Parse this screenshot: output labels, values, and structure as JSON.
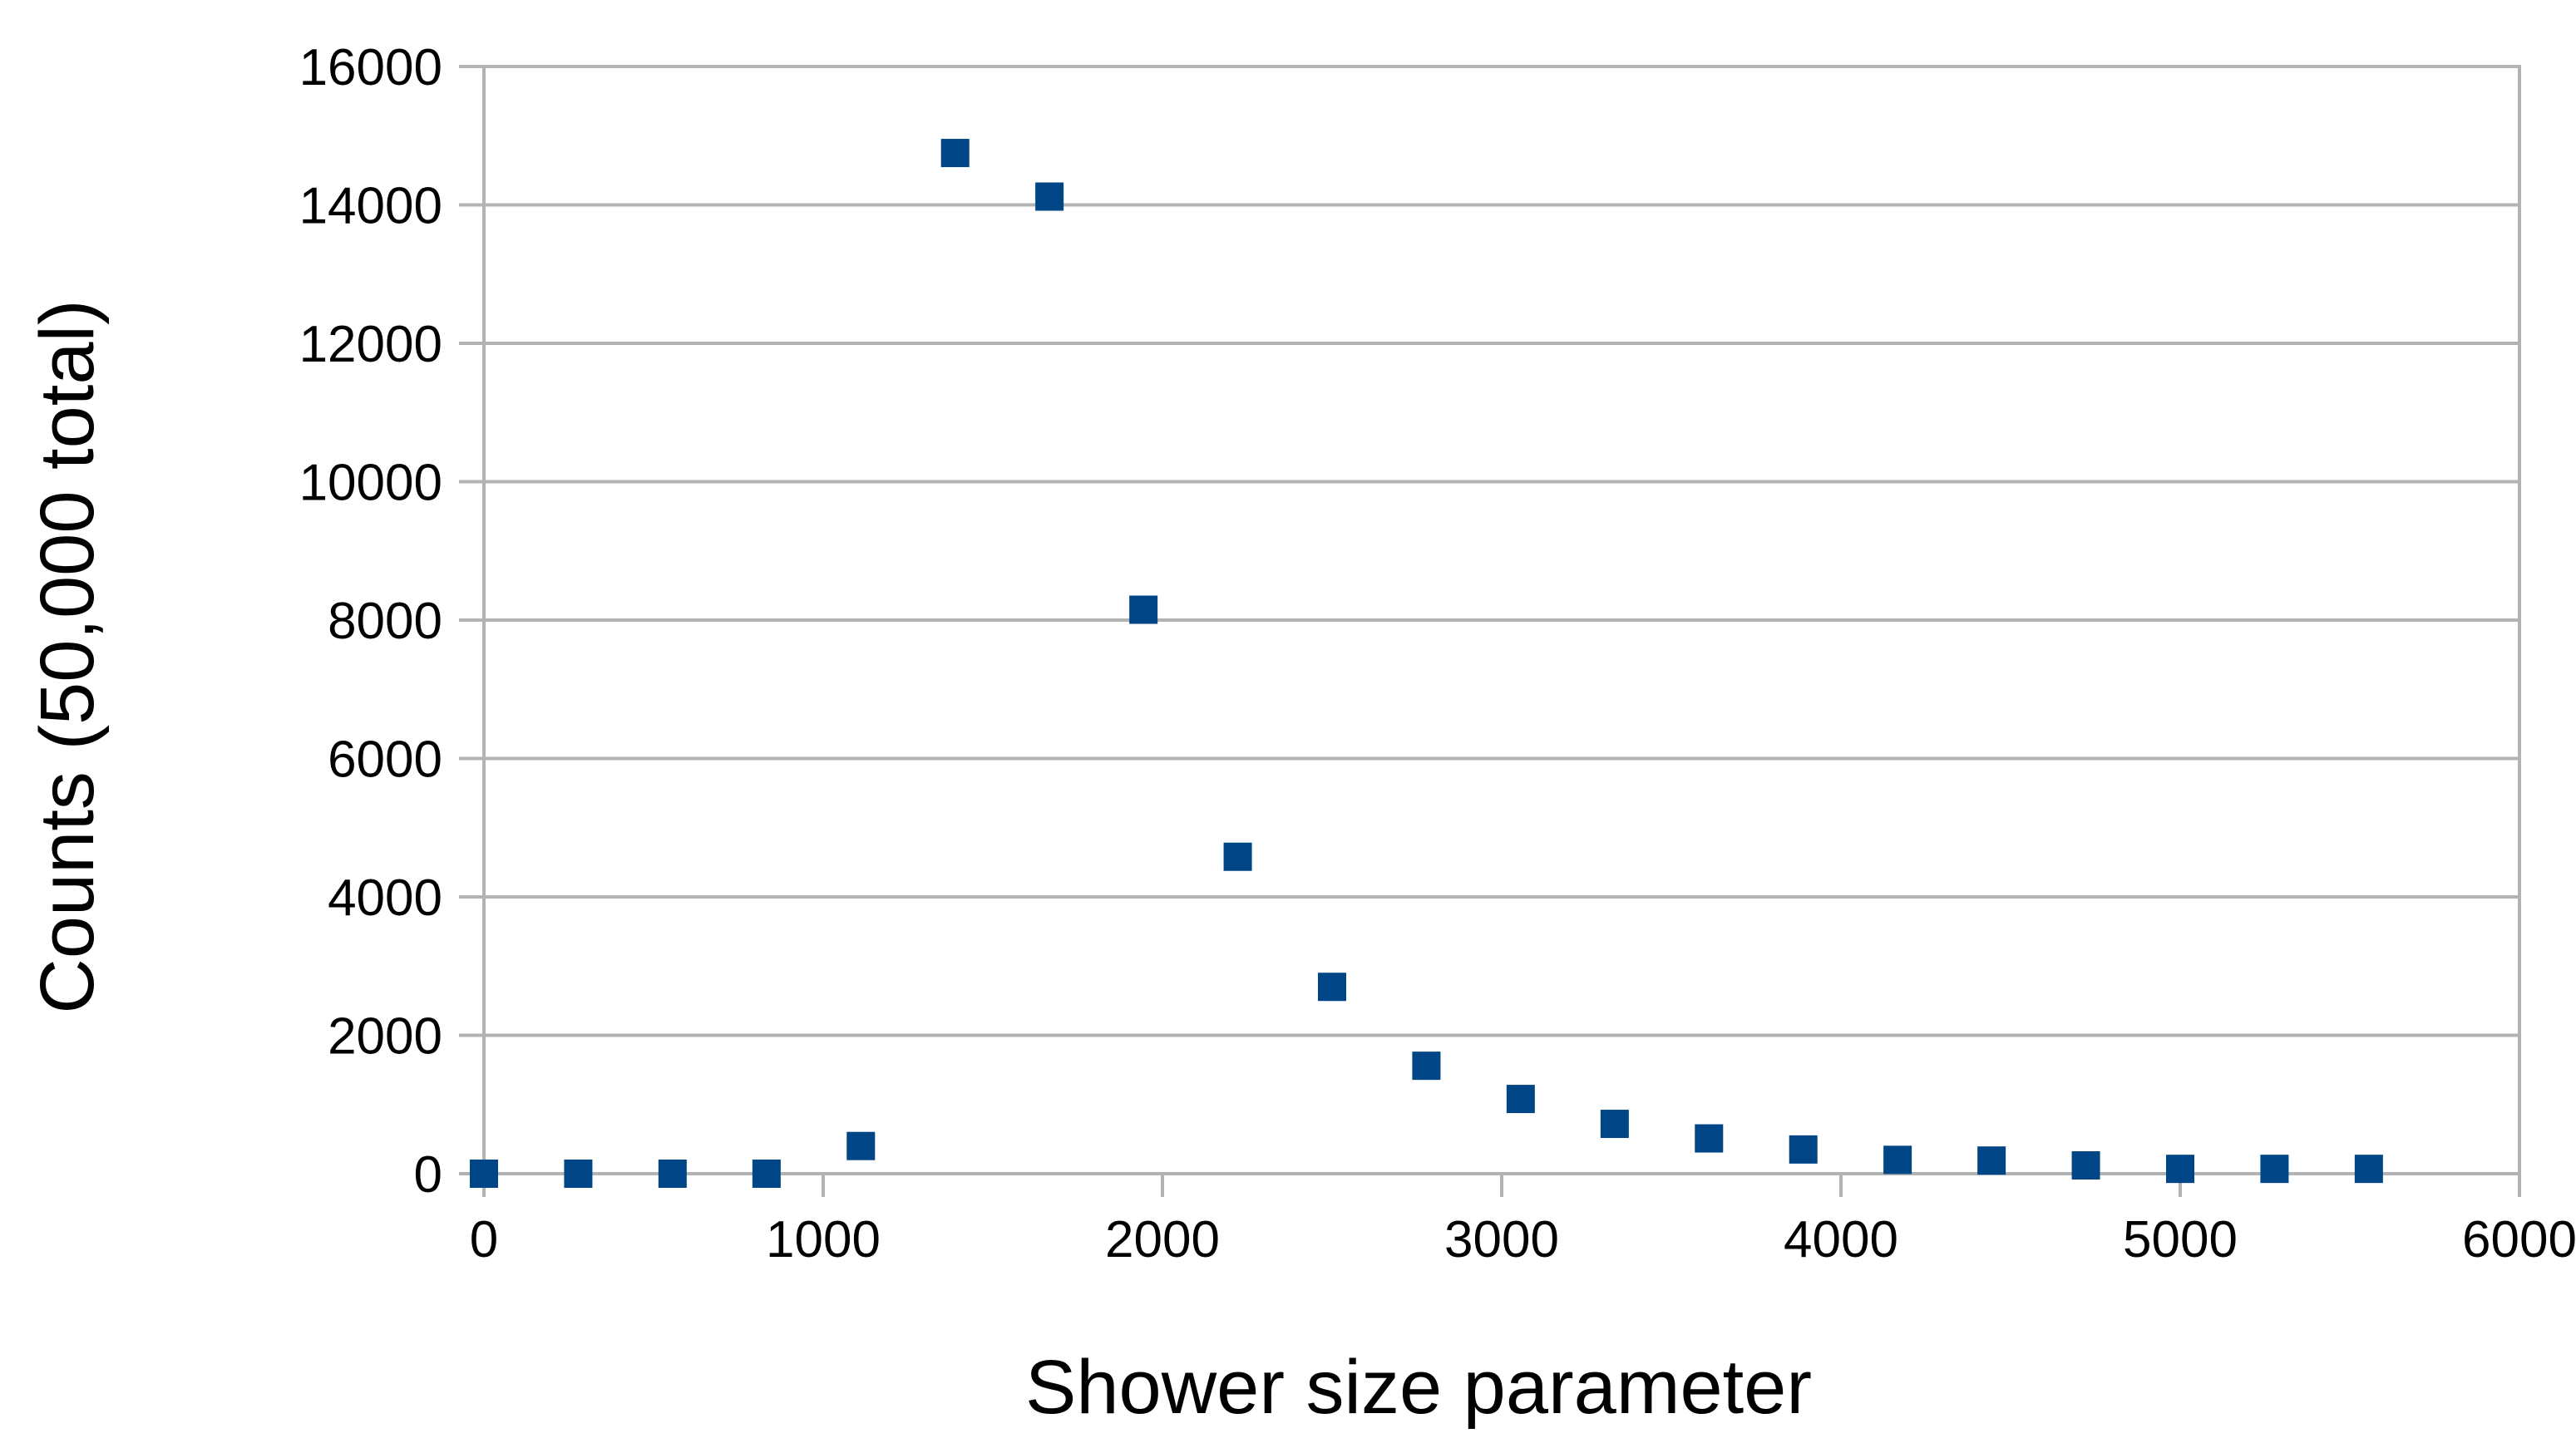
{
  "chart_data": {
    "type": "scatter",
    "title": "",
    "xlabel": "Shower size parameter",
    "ylabel": "Counts (50,000 total)",
    "xlim": [
      0,
      6000
    ],
    "ylim": [
      0,
      16000
    ],
    "x_ticks": [
      "0",
      "1000",
      "2000",
      "3000",
      "4000",
      "5000",
      "6000"
    ],
    "y_ticks": [
      "0",
      "2000",
      "4000",
      "6000",
      "8000",
      "10000",
      "12000",
      "14000",
      "16000"
    ],
    "grid": "horizontal",
    "legend": "none",
    "marker_color": "#004586",
    "series": [
      {
        "x": [
          0,
          278,
          556,
          833,
          1111,
          1389,
          1667,
          1944,
          2222,
          2500,
          2778,
          3056,
          3333,
          3611,
          3889,
          4167,
          4444,
          4722,
          5000,
          5278,
          5556
        ],
        "values": [
          0,
          0,
          0,
          0,
          400,
          14750,
          14120,
          8150,
          4580,
          2700,
          1560,
          1080,
          720,
          510,
          350,
          200,
          190,
          120,
          70,
          70,
          70
        ]
      }
    ]
  }
}
